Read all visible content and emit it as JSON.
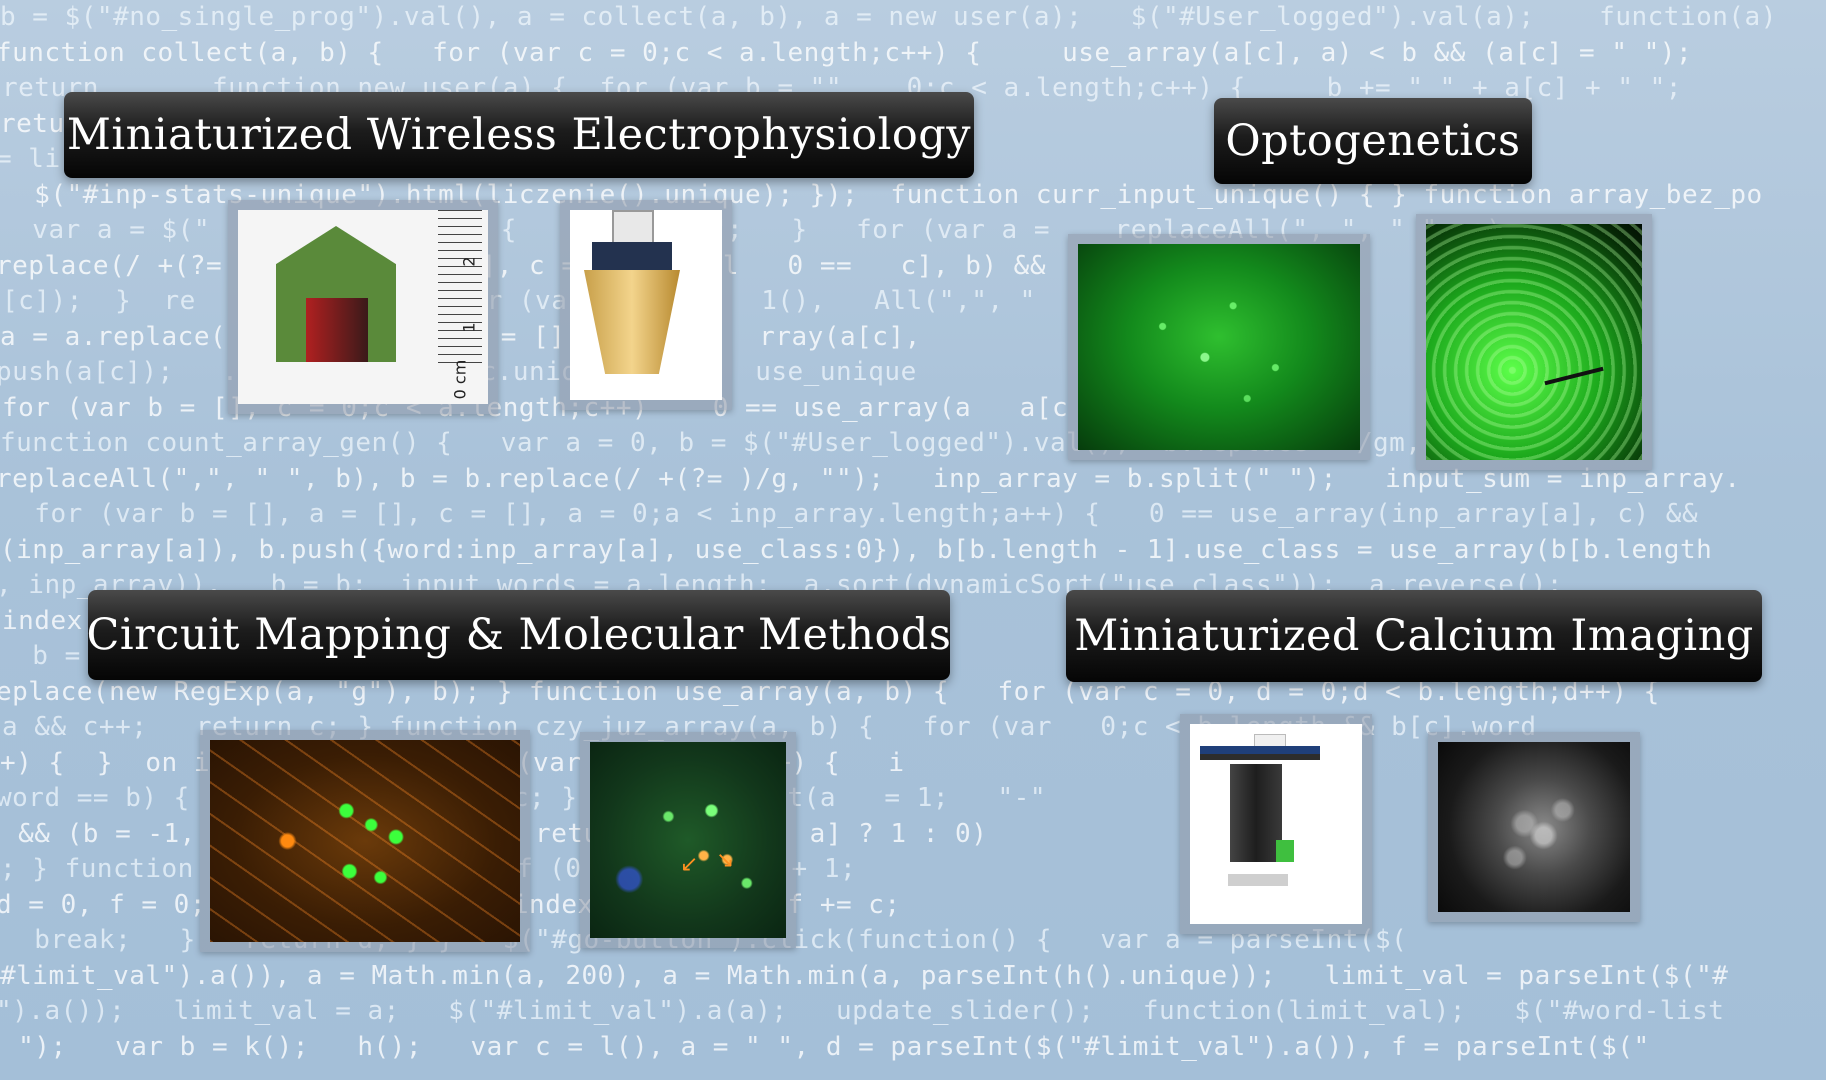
{
  "code_background": [
    "b = $(\"#no_single_prog\").val(), a = collect(a, b), a = new user(a);   $(\"#User_logged\").val(a);    function(a)",
    "function collect(a, b) {   for (var c = 0;c < a.length;c++) {     use_array(a[c], a) < b && (a[c] = \" \");",
    "return   ... function new user(a) {  for (var b = \"\"    0;c < a.length;c++) {     b += \" \" + a[c] + \" \";",
    "return ... ut input change   focus\", function(a)",
    "= li   a.unique);   .html(liczenie().w",
    "  $(\"#inp-stats-unique\").html(liczenie().unique); });  function curr_input_unique() { } function array_bez_po",
    "  var a = $(\"    if (   ength) {    return \"\";   }   for (var a =    replaceAll(\", \", \" \", a);",
    "replace(/ +(?=   a.spl   b = [], c = 0;c < a.l   0 ==   c], b) &&",
    "[c]);  }  re   ion    ) {   for (var a = $(\"   1(),   All(\",\", \"",
    "a = a.replace(   a    (\" \"), b = [], c = 0;c   rray(a[c],",
    "push(a[c]);   .word   ngth;   c.unique = b.l   use_unique",
    "for (var b = [], c = 0;c < a.length;c++)    0 == use_array(a   a[c   rn b.lengt",
    "function count_array_gen() {   var a = 0, b = $(\"#User_logged\").val(),  b.replace   /gm, \" \");",
    "replaceAll(\",\", \" \", b), b = b.replace(/ +(?= )/g, \"\");   inp_array = b.split(\" \");   input_sum = inp_array.",
    "  for (var b = [], a = [], c = [], a = 0;a < inp_array.length;a++) {   0 == use_array(inp_array[a], c) &&",
    "(inp_array[a]), b.push({word:inp_array[a], use_class:0}), b[b.length - 1].use_class = use_array(b[b.length",
    ", inp_array)),   b = b;  input_words = a.length;  a.sort(dynamicSort(\"use_class\"));  a.reverse();",
    "index(   inde   ice(",
    "  b =   );   re   re",
    "eplace(new RegExp(a, \"g\"), b); } function use_array(a, b) {   for (var c = 0, d = 0;d < b.length;d++) {",
    "a && c++;   return c; } function czy_juz_array(a, b) {   for (var   0;c < b.length && b[c].word",
    "+) {  }  on i   d(a, b) {   for (var c   ;d <   +) {   i",
    "word == b) {   bre   }   return c; } functio   ort(a   = 1;   \"-\"",
    " && (b = -1,   re   on(c, d) {   return(c[   -1   a] ? 1 : 0)",
    "; } function   c)   b += \"\";   if (0 >= b   ngth + 1;",
    "d = 0, f = 0;   : b   if (f = a.indexOf(b   f)   f += c;",
    "  break;   }   return d; } }   $(\"#go-button\").click(function() {   var a = parseInt($(",
    "#limit_val\").a()), a = Math.min(a, 200), a = Math.min(a, parseInt(h().unique));   limit_val = parseInt($(\"#",
    "\").a());   limit_val = a;   $(\"#limit_val\").a(a);   update_slider();   function(limit_val);   $(\"#word-list",
    " \");   var b = k();   h();   var c = l(), a = \" \", d = parseInt($(\"#limit_val\").a()), f = parseInt($(\""
  ],
  "panels": {
    "electrophysiology": {
      "title": "Miniaturized Wireless Electrophysiology",
      "ruler_marks": [
        "2",
        "1",
        "0 cm"
      ]
    },
    "optogenetics": {
      "title": "Optogenetics"
    },
    "circuit_mapping": {
      "title": "Circuit Mapping & Molecular Methods"
    },
    "calcium_imaging": {
      "title": "Miniaturized Calcium Imaging"
    }
  },
  "colors": {
    "banner_text": "#ffffff",
    "background": "#a9c2d9"
  }
}
